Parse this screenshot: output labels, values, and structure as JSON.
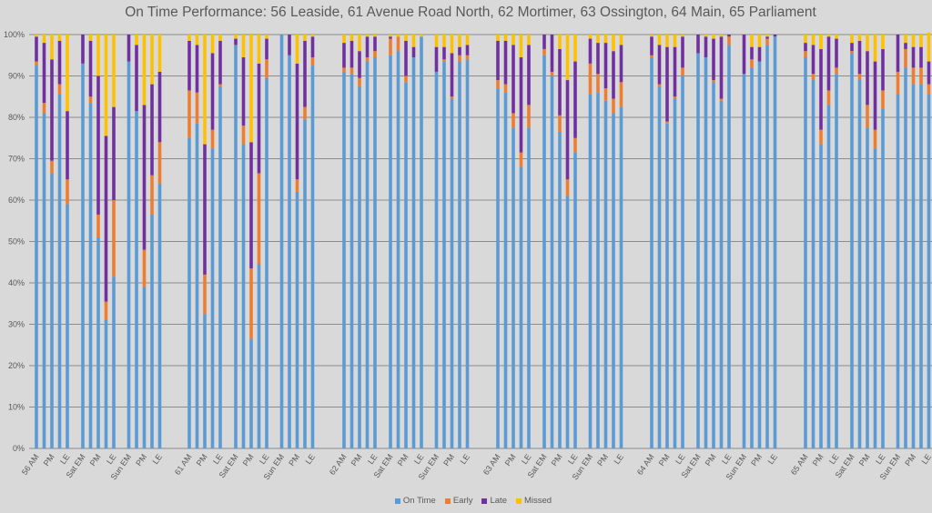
{
  "chart_data": {
    "type": "bar",
    "stacked": true,
    "title": "On Time Performance: 56 Leaside, 61 Avenue Road North, 62 Mortimer, 63 Ossington, 64 Main, 65 Parliament",
    "xlabel": "",
    "ylabel": "",
    "ylim": [
      0,
      100
    ],
    "y_format": "percent",
    "y_ticks": [
      "0%",
      "10%",
      "20%",
      "30%",
      "40%",
      "50%",
      "60%",
      "70%",
      "80%",
      "90%",
      "100%"
    ],
    "grid": true,
    "legend_position": "bottom",
    "colors": {
      "On Time": "#5b9bd5",
      "Early": "#ed7d31",
      "Late": "#7030a0",
      "Missed": "#ffc000"
    },
    "groups": [
      {
        "route": "56",
        "clusters": [
          {
            "tick_labels": [
              "56 AM",
              "",
              "PM",
              "",
              "LE"
            ],
            "on_time": [
              92.5,
              81,
              66.5,
              85.5,
              59
            ],
            "early": [
              1,
              2.5,
              3,
              2.5,
              6
            ],
            "late": [
              6,
              14.5,
              24.5,
              10.5,
              16.5
            ],
            "missed": [
              0.5,
              2,
              6,
              1.5,
              18.5
            ]
          },
          {
            "tick_labels": [
              "Sat EM",
              "",
              "PM",
              "",
              "LE"
            ],
            "on_time": [
              93,
              83.5,
              51,
              31,
              41.5
            ],
            "early": [
              0,
              1.5,
              5.5,
              4.5,
              18.5
            ],
            "late": [
              7,
              13.5,
              33.5,
              40,
              22.5
            ],
            "missed": [
              0,
              1.5,
              10,
              24.5,
              17.5
            ]
          },
          {
            "tick_labels": [
              "Sun EM",
              "",
              "PM",
              "",
              "LE"
            ],
            "on_time": [
              93.5,
              81.5,
              39,
              56.5,
              64
            ],
            "early": [
              0,
              0,
              9,
              9.5,
              10
            ],
            "late": [
              6.5,
              16,
              35,
              22,
              17
            ],
            "missed": [
              0,
              2.5,
              17,
              12,
              9
            ]
          }
        ]
      },
      {
        "route": "61",
        "clusters": [
          {
            "tick_labels": [
              "61 AM",
              "",
              "PM",
              "",
              "LE"
            ],
            "on_time": [
              75,
              78.5,
              32.5,
              72.5,
              87.5
            ],
            "early": [
              11.5,
              7.5,
              9.5,
              4.5,
              0.5
            ],
            "late": [
              12,
              11.5,
              31.5,
              18.5,
              10.5
            ],
            "missed": [
              1.5,
              2.5,
              26.5,
              4.5,
              1.5
            ]
          },
          {
            "tick_labels": [
              "Sat EM",
              "",
              "PM",
              "",
              "LE"
            ],
            "on_time": [
              97.5,
              73.5,
              26.5,
              44.5,
              89.5
            ],
            "early": [
              0,
              4.5,
              17,
              22,
              4.5
            ],
            "late": [
              1.5,
              16.5,
              30.5,
              26.5,
              5
            ],
            "missed": [
              1,
              5.5,
              26,
              7,
              1
            ]
          },
          {
            "tick_labels": [
              "Sun EM",
              "",
              "PM",
              "",
              "LE"
            ],
            "on_time": [
              100,
              95,
              62,
              79.5,
              92.5
            ],
            "early": [
              0,
              0,
              3,
              3,
              2
            ],
            "late": [
              0,
              5,
              28,
              16,
              5
            ],
            "missed": [
              0,
              0,
              7,
              1.5,
              0.5
            ]
          }
        ]
      },
      {
        "route": "62",
        "clusters": [
          {
            "tick_labels": [
              "62 AM",
              "",
              "PM",
              "",
              "LE"
            ],
            "on_time": [
              91,
              90.5,
              87.5,
              93.5,
              94.5
            ],
            "early": [
              1,
              1.5,
              2,
              1,
              1.5
            ],
            "late": [
              6,
              6.5,
              6.5,
              5,
              3.5
            ],
            "missed": [
              2,
              1.5,
              4,
              0.5,
              0.5
            ]
          },
          {
            "tick_labels": [
              "Sat EM",
              "",
              "PM",
              "",
              "LE"
            ],
            "on_time": [
              95,
              96,
              88.5,
              94.5,
              99.5
            ],
            "early": [
              4,
              3.5,
              1.5,
              0,
              0
            ],
            "late": [
              0.5,
              0,
              8.5,
              2.5,
              0
            ],
            "missed": [
              0.5,
              0.5,
              1.5,
              3,
              0.5
            ]
          },
          {
            "tick_labels": [
              "Sun EM",
              "",
              "PM",
              "",
              "LE"
            ],
            "on_time": [
              91,
              93.5,
              84.5,
              93.5,
              94
            ],
            "early": [
              0,
              0.5,
              0.5,
              1.5,
              1
            ],
            "late": [
              6,
              3,
              10.5,
              2,
              2.5
            ],
            "missed": [
              3,
              3,
              4.5,
              3,
              2.5
            ]
          }
        ]
      },
      {
        "route": "63",
        "clusters": [
          {
            "tick_labels": [
              "63 AM",
              "",
              "PM",
              "",
              "LE"
            ],
            "on_time": [
              87,
              86,
              77.5,
              68,
              77.5
            ],
            "early": [
              2,
              2,
              3.5,
              3.5,
              5.5
            ],
            "late": [
              9.5,
              10.5,
              16.5,
              23,
              14.5
            ],
            "missed": [
              1.5,
              1.5,
              2.5,
              5.5,
              2.5
            ]
          },
          {
            "tick_labels": [
              "Sat EM",
              "",
              "PM",
              "",
              "LE"
            ],
            "on_time": [
              95,
              90,
              76.5,
              61,
              71.5
            ],
            "early": [
              1.5,
              1,
              4,
              4,
              3.5
            ],
            "late": [
              3.5,
              9,
              16,
              24,
              18.5
            ],
            "missed": [
              0,
              0,
              3.5,
              11,
              6.5
            ]
          },
          {
            "tick_labels": [
              "Sun EM",
              "",
              "PM",
              "",
              "LE"
            ],
            "on_time": [
              85.5,
              86,
              84,
              81,
              82.5
            ],
            "early": [
              7.5,
              4.5,
              3,
              3.5,
              6
            ],
            "late": [
              6,
              7.5,
              11,
              11.5,
              9
            ],
            "missed": [
              1,
              2,
              2,
              4,
              2.5
            ]
          }
        ]
      },
      {
        "route": "64",
        "clusters": [
          {
            "tick_labels": [
              "64 AM",
              "",
              "PM",
              "",
              "LE"
            ],
            "on_time": [
              94.5,
              87.5,
              78.5,
              84.5,
              90
            ],
            "early": [
              0.5,
              0.5,
              0.5,
              0.5,
              2
            ],
            "late": [
              4.5,
              9.5,
              18,
              12,
              7.5
            ],
            "missed": [
              0.5,
              2.5,
              3,
              3,
              0.5
            ]
          },
          {
            "tick_labels": [
              "Sat EM",
              "",
              "PM",
              "",
              "LE"
            ],
            "on_time": [
              95.5,
              94.5,
              88.5,
              84,
              97.5
            ],
            "early": [
              0,
              0,
              0.5,
              0.5,
              2
            ],
            "late": [
              4.5,
              5,
              10,
              15,
              0.5
            ],
            "missed": [
              0,
              0.5,
              1,
              0.5,
              0
            ]
          },
          {
            "tick_labels": [
              "Sun EM",
              "",
              "PM",
              "",
              "LE"
            ],
            "on_time": [
              90.5,
              92,
              93.5,
              97.5,
              99.5
            ],
            "early": [
              0,
              2,
              0,
              1.5,
              0
            ],
            "late": [
              9.5,
              3,
              3.5,
              0.5,
              0.5
            ],
            "missed": [
              0,
              3,
              3,
              0.5,
              0
            ]
          }
        ]
      },
      {
        "route": "65",
        "clusters": [
          {
            "tick_labels": [
              "65 AM",
              "",
              "PM",
              "",
              "LE"
            ],
            "on_time": [
              94.5,
              89,
              73.5,
              83,
              90.5
            ],
            "early": [
              1.5,
              1.5,
              3.5,
              3.5,
              1.5
            ],
            "late": [
              2,
              7,
              19.5,
              13,
              7
            ],
            "missed": [
              2,
              2.5,
              3.5,
              0.5,
              1
            ]
          },
          {
            "tick_labels": [
              "Sat EM",
              "",
              "PM",
              "",
              "LE"
            ],
            "on_time": [
              95.5,
              89,
              77.5,
              72.5,
              82
            ],
            "early": [
              0.5,
              1.5,
              5.5,
              4.5,
              4.5
            ],
            "late": [
              2,
              8,
              13,
              16.5,
              10
            ],
            "missed": [
              2,
              1.5,
              4,
              6.5,
              3.5
            ]
          },
          {
            "tick_labels": [
              "Sun EM",
              "",
              "PM",
              "",
              "LE"
            ],
            "on_time": [
              85.5,
              92,
              88,
              88,
              85.5
            ],
            "early": [
              5.5,
              4.5,
              4,
              4,
              2.5
            ],
            "late": [
              9,
              1.5,
              5,
              5,
              5.5
            ],
            "missed": [
              0,
              2,
              3,
              3,
              7
            ]
          }
        ]
      }
    ],
    "legend": [
      "On Time",
      "Early",
      "Late",
      "Missed"
    ]
  }
}
